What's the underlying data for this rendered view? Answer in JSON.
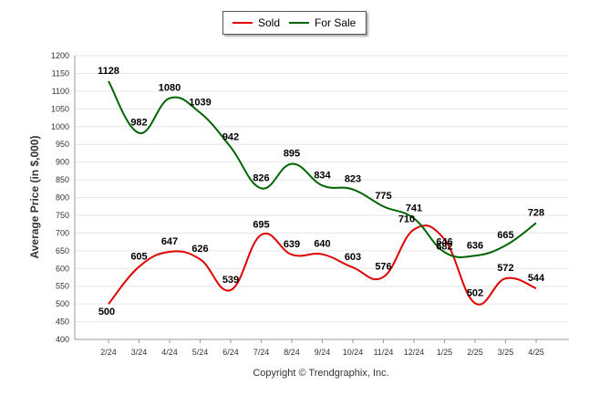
{
  "legend": {
    "items": [
      {
        "label": "Sold",
        "color": "#e00000"
      },
      {
        "label": "For Sale",
        "color": "#006400"
      }
    ]
  },
  "chart_data": {
    "type": "line",
    "title": "",
    "xlabel": "",
    "ylabel": "Average Price (in $,000)",
    "ylim": [
      400,
      1200
    ],
    "yticks": [
      400,
      450,
      500,
      550,
      600,
      650,
      700,
      750,
      800,
      850,
      900,
      950,
      1000,
      1050,
      1100,
      1150,
      1200
    ],
    "grid": true,
    "legend_position": "top",
    "categories": [
      "2/24",
      "3/24",
      "4/24",
      "5/24",
      "6/24",
      "7/24",
      "8/24",
      "9/24",
      "10/24",
      "11/24",
      "12/24",
      "1/25",
      "2/25",
      "3/25",
      "4/25"
    ],
    "series": [
      {
        "name": "Sold",
        "color": "#e00000",
        "values": [
          500,
          605,
          647,
          626,
          539,
          695,
          639,
          640,
          603,
          576,
          710,
          682,
          502,
          572,
          544
        ]
      },
      {
        "name": "For Sale",
        "color": "#006400",
        "values": [
          1128,
          982,
          1080,
          1039,
          942,
          826,
          895,
          834,
          823,
          775,
          741,
          646,
          636,
          665,
          728
        ]
      }
    ]
  },
  "footer": {
    "copyright": "Copyright © Trendgraphix, Inc."
  }
}
